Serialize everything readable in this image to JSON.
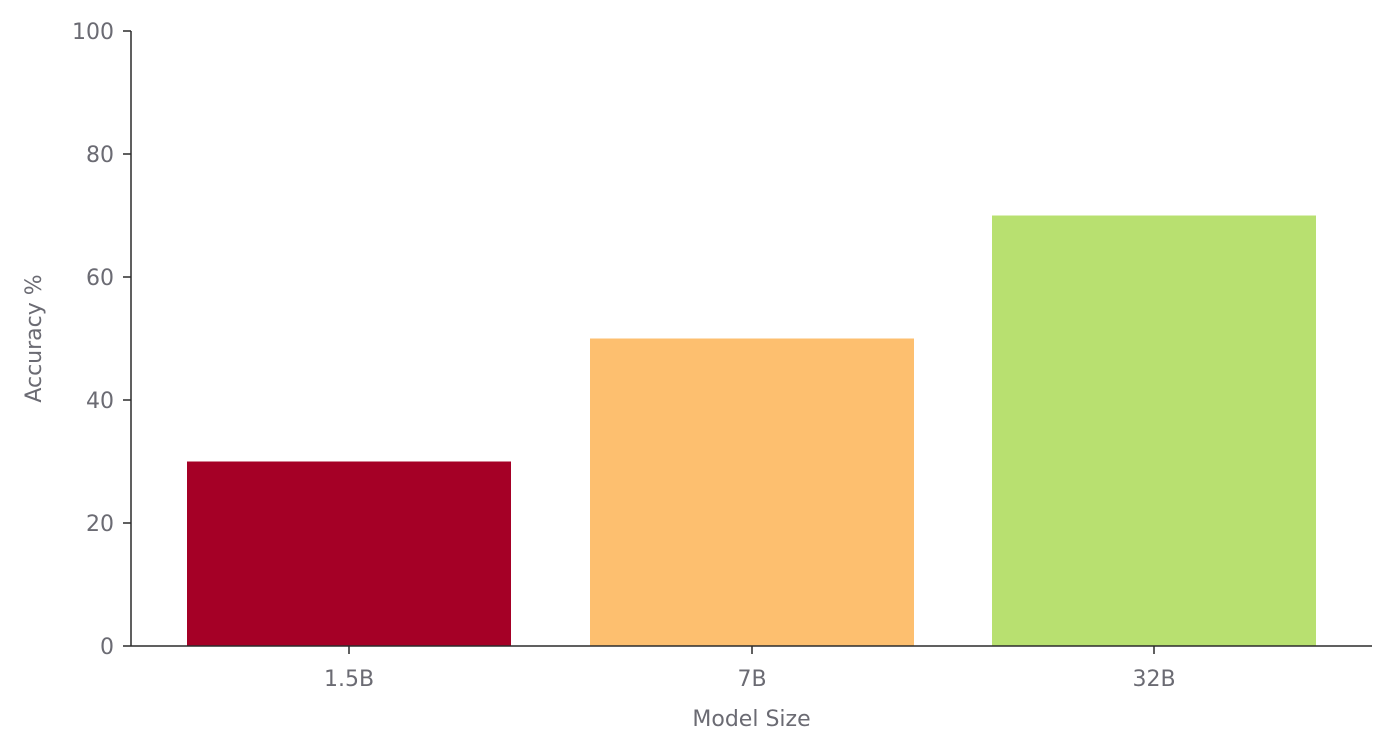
{
  "chart_data": {
    "type": "bar",
    "title": "",
    "xlabel": "Model Size",
    "ylabel": "Accuracy %",
    "categories": [
      "1.5B",
      "7B",
      "32B"
    ],
    "values": [
      30,
      50,
      70
    ],
    "colors": [
      "#a50026",
      "#fdbf6f",
      "#b8e070"
    ],
    "ylim": [
      0,
      100
    ],
    "yticks": [
      0,
      20,
      40,
      60,
      80,
      100
    ],
    "grid": false,
    "legend": "none"
  }
}
